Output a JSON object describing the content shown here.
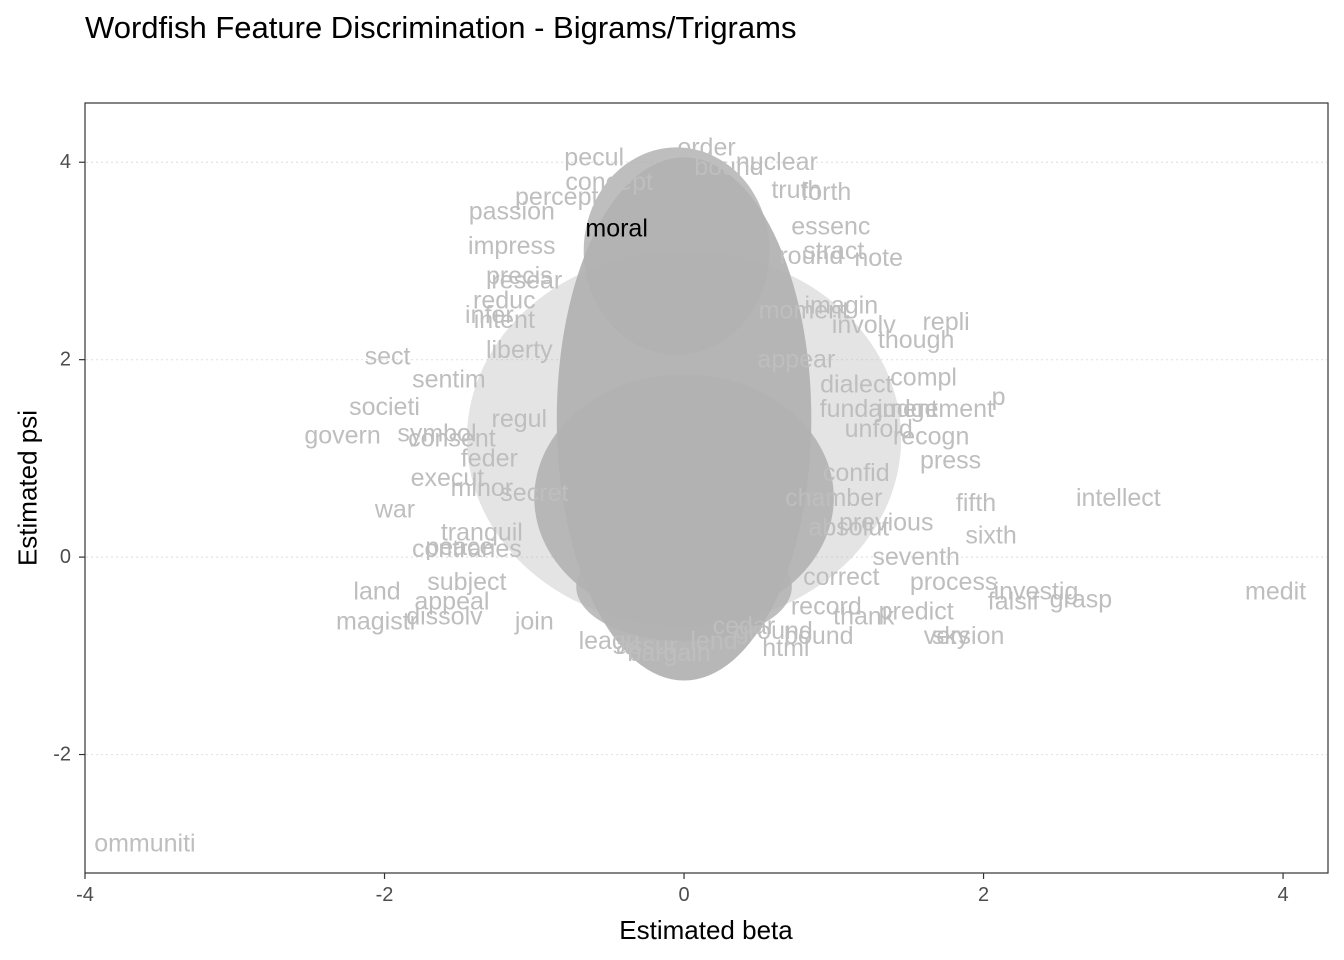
{
  "chart_data": {
    "type": "scatter",
    "title": "Wordfish Feature Discrimination - Bigrams/Trigrams",
    "xlabel": "Estimated beta",
    "ylabel": "Estimated psi",
    "xlim": [
      -4,
      4.3
    ],
    "ylim": [
      -3.2,
      4.6
    ],
    "xticks": [
      -4,
      -2,
      0,
      2,
      4
    ],
    "yticks": [
      -2,
      0,
      2,
      4
    ],
    "grid": "horizontal dotted",
    "label_color": "#bebebe",
    "highlight_color": "#000000",
    "highlighted": [
      {
        "label": "moral",
        "x": -0.45,
        "y": 3.33
      }
    ],
    "points": [
      {
        "label": "intellect",
        "x": 2.9,
        "y": 0.6
      },
      {
        "label": "medit",
        "x": 3.95,
        "y": -0.35
      },
      {
        "label": "ommuniti",
        "x": -3.6,
        "y": -2.9
      },
      {
        "label": "land",
        "x": -2.05,
        "y": -0.35
      },
      {
        "label": "magistr",
        "x": -2.05,
        "y": -0.65
      },
      {
        "label": "war",
        "x": -1.93,
        "y": 0.48
      },
      {
        "label": "societi",
        "x": -2.0,
        "y": 1.52
      },
      {
        "label": "govern",
        "x": -2.28,
        "y": 1.23
      },
      {
        "label": "sect",
        "x": -1.98,
        "y": 2.03
      },
      {
        "label": "passion",
        "x": -1.15,
        "y": 3.5
      },
      {
        "label": "impress",
        "x": -1.15,
        "y": 3.15
      },
      {
        "label": "sentim",
        "x": -1.57,
        "y": 1.8
      },
      {
        "label": "consent",
        "x": -1.55,
        "y": 1.2
      },
      {
        "label": "execut",
        "x": -1.58,
        "y": 0.8
      },
      {
        "label": "contraries",
        "x": -1.45,
        "y": 0.08
      },
      {
        "label": "appeal",
        "x": -1.55,
        "y": -0.45
      },
      {
        "label": "dissolv",
        "x": -1.6,
        "y": -0.6
      },
      {
        "label": "resear",
        "x": -1.05,
        "y": 2.8
      },
      {
        "label": "liberty",
        "x": -1.1,
        "y": 2.1
      },
      {
        "label": "repli",
        "x": 1.75,
        "y": 2.38
      },
      {
        "label": "though",
        "x": 1.55,
        "y": 2.2
      },
      {
        "label": "note",
        "x": 1.3,
        "y": 3.03
      },
      {
        "label": "essenc",
        "x": 0.98,
        "y": 3.35
      },
      {
        "label": "nuclear",
        "x": 0.62,
        "y": 4.0
      },
      {
        "label": "truth",
        "x": 0.75,
        "y": 3.72
      },
      {
        "label": "order",
        "x": 0.15,
        "y": 4.15
      },
      {
        "label": "p",
        "x": 2.1,
        "y": 1.62
      },
      {
        "label": "judgement",
        "x": 1.68,
        "y": 1.5
      },
      {
        "label": "recogn",
        "x": 1.65,
        "y": 1.22
      },
      {
        "label": "press",
        "x": 1.78,
        "y": 0.98
      },
      {
        "label": "compl",
        "x": 1.6,
        "y": 1.82
      },
      {
        "label": "process",
        "x": 1.8,
        "y": -0.25
      },
      {
        "label": "investig",
        "x": 2.35,
        "y": -0.35
      },
      {
        "label": "falsif",
        "x": 2.2,
        "y": -0.45
      },
      {
        "label": "grasp",
        "x": 2.65,
        "y": -0.43
      },
      {
        "label": "version",
        "x": 1.87,
        "y": -0.8
      },
      {
        "label": "sky",
        "x": 1.78,
        "y": -0.8
      },
      {
        "label": "predict",
        "x": 1.55,
        "y": -0.55
      },
      {
        "label": "sixth",
        "x": 2.05,
        "y": 0.22
      },
      {
        "label": "seventh",
        "x": 1.55,
        "y": 0.0
      },
      {
        "label": "fifth",
        "x": 1.95,
        "y": 0.55
      },
      {
        "label": "html",
        "x": 0.68,
        "y": -0.92
      },
      {
        "label": "bargain",
        "x": -0.1,
        "y": -0.97
      },
      {
        "label": "join",
        "x": -1.0,
        "y": -0.65
      },
      {
        "label": "stract",
        "x": 1.0,
        "y": 3.1
      },
      {
        "label": "involv",
        "x": 1.2,
        "y": 2.35
      },
      {
        "label": "confid",
        "x": 1.15,
        "y": 0.85
      },
      {
        "label": "symbol",
        "x": -1.65,
        "y": 1.25
      },
      {
        "label": "reduc",
        "x": -1.2,
        "y": 2.6
      },
      {
        "label": "peace",
        "x": -1.5,
        "y": 0.1
      },
      {
        "label": "subject",
        "x": -1.45,
        "y": -0.25
      },
      {
        "label": "pecul",
        "x": -0.6,
        "y": 4.05
      },
      {
        "label": "percept",
        "x": -0.85,
        "y": 3.65
      },
      {
        "label": "concept",
        "x": -0.5,
        "y": 3.8
      },
      {
        "label": "bound",
        "x": 0.3,
        "y": 3.95
      },
      {
        "label": "round",
        "x": 0.85,
        "y": 3.05
      },
      {
        "label": "forth",
        "x": 0.95,
        "y": 3.7
      },
      {
        "label": "regul",
        "x": -1.1,
        "y": 1.4
      },
      {
        "label": "fundament",
        "x": 1.3,
        "y": 1.5
      },
      {
        "label": "dialect",
        "x": 1.15,
        "y": 1.75
      },
      {
        "label": "precis",
        "x": -1.1,
        "y": 2.85
      },
      {
        "label": "infer",
        "x": -1.3,
        "y": 2.45
      },
      {
        "label": "intent",
        "x": -1.2,
        "y": 2.4
      },
      {
        "label": "bound",
        "x": 0.9,
        "y": -0.8
      },
      {
        "label": "thank",
        "x": 1.2,
        "y": -0.6
      },
      {
        "label": "record",
        "x": 0.95,
        "y": -0.5
      },
      {
        "label": "correct",
        "x": 1.05,
        "y": -0.2
      },
      {
        "label": "chamber",
        "x": 1.0,
        "y": 0.6
      },
      {
        "label": "previous",
        "x": 1.35,
        "y": 0.35
      },
      {
        "label": "absolut",
        "x": 1.1,
        "y": 0.3
      },
      {
        "label": "unfold",
        "x": 1.3,
        "y": 1.3
      },
      {
        "label": "imagin",
        "x": 1.05,
        "y": 2.55
      },
      {
        "label": "moment",
        "x": 0.8,
        "y": 2.5
      },
      {
        "label": "appear",
        "x": 0.75,
        "y": 2.0
      },
      {
        "label": "secret",
        "x": -1.0,
        "y": 0.65
      },
      {
        "label": "feder",
        "x": -1.3,
        "y": 1.0
      },
      {
        "label": "minor",
        "x": -1.35,
        "y": 0.7
      },
      {
        "label": "tranquil",
        "x": -1.35,
        "y": 0.25
      },
      {
        "label": "leagu",
        "x": -0.5,
        "y": -0.85
      },
      {
        "label": "assur",
        "x": -0.25,
        "y": -0.9
      },
      {
        "label": "lend",
        "x": 0.2,
        "y": -0.85
      },
      {
        "label": "cedar",
        "x": 0.4,
        "y": -0.7
      },
      {
        "label": "ground",
        "x": 0.6,
        "y": -0.75
      }
    ]
  }
}
